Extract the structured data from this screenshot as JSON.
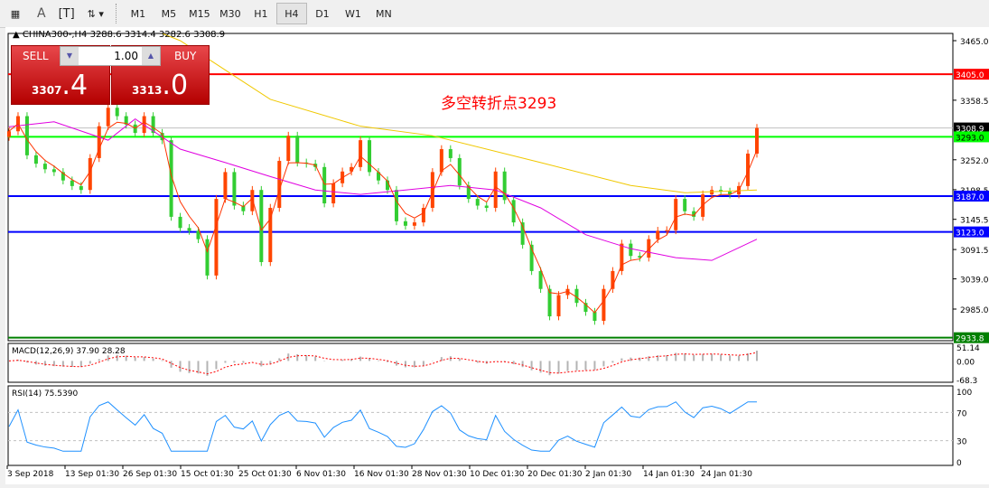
{
  "toolbar": {
    "icons": [
      "grid-icon",
      "text-icon",
      "text-label-icon",
      "arrows-icon"
    ],
    "text_icon": "A",
    "timeframes": [
      "M1",
      "M5",
      "M15",
      "M30",
      "H1",
      "H4",
      "D1",
      "W1",
      "MN"
    ],
    "selected": "H4"
  },
  "symbol_header": "CHINA300-,H4  3288.6 3314.4 3282.6 3308.9",
  "trade_panel": {
    "sell_label": "SELL",
    "buy_label": "BUY",
    "volume": "1.00",
    "sell_big": "3307",
    "sell_small": ".4",
    "buy_big": "3313",
    "buy_small": ".0"
  },
  "annotation": "多空转折点3293",
  "colors": {
    "up": "#ff4500",
    "down": "#32cd32",
    "short_ma": "#ff3300",
    "mid_ma": "#e000e0",
    "long_ma": "#f0c800",
    "resistance": "#ff0000",
    "pivot": "#00ff00",
    "support": "#0000ff",
    "low_line": "#008000",
    "macd_signal": "#ff0000",
    "macd_hist": "#b4b4b4",
    "rsi": "#1e90ff"
  },
  "chart_data": {
    "type": "candlestick",
    "symbol": "CHINA300-",
    "timeframe": "H4",
    "ylim": [
      2925,
      3480
    ],
    "yticks": [
      "3465.0",
      "3358.5",
      "3252.0",
      "3198.5",
      "3145.5",
      "3091.5",
      "3039.0",
      "2985.0"
    ],
    "xtick_labels": [
      "3 Sep 2018",
      "13 Sep 01:30",
      "26 Sep 01:30",
      "15 Oct 01:30",
      "25 Oct 01:30",
      "6 Nov 01:30",
      "16 Nov 01:30",
      "28 Nov 01:30",
      "10 Dec 01:30",
      "20 Dec 01:30",
      "2 Jan 01:30",
      "14 Jan 01:30",
      "24 Jan 01:30"
    ],
    "close": [
      3303,
      3330,
      3260,
      3245,
      3235,
      3230,
      3215,
      3205,
      3198,
      3255,
      3312,
      3345,
      3330,
      3315,
      3300,
      3330,
      3300,
      3287,
      3150,
      3130,
      3125,
      3110,
      3045,
      3182,
      3230,
      3170,
      3160,
      3198,
      3069,
      3166,
      3250,
      3295,
      3247,
      3245,
      3239,
      3174,
      3210,
      3231,
      3239,
      3287,
      3230,
      3215,
      3198,
      3142,
      3134,
      3140,
      3166,
      3230,
      3271,
      3255,
      3206,
      3182,
      3170,
      3166,
      3231,
      3180,
      3140,
      3100,
      3053,
      3021,
      2972,
      3010,
      3021,
      2996,
      2980,
      2964,
      3021,
      3053,
      3102,
      3080,
      3077,
      3110,
      3125,
      3126,
      3182,
      3160,
      3150,
      3190,
      3198,
      3195,
      3190,
      3205,
      3263,
      3308.9
    ],
    "long_ma": [
      [
        17,
        3478
      ],
      [
        19,
        3465
      ],
      [
        29,
        3360
      ],
      [
        39,
        3312
      ],
      [
        47,
        3295
      ],
      [
        59,
        3247
      ],
      [
        69,
        3206
      ],
      [
        75,
        3193
      ],
      [
        83,
        3198
      ]
    ],
    "mid_ma": [
      [
        0,
        3311
      ],
      [
        5,
        3320
      ],
      [
        11,
        3287
      ],
      [
        14,
        3325
      ],
      [
        19,
        3271
      ],
      [
        24,
        3247
      ],
      [
        29,
        3222
      ],
      [
        34,
        3198
      ],
      [
        39,
        3190
      ],
      [
        44,
        3198
      ],
      [
        49,
        3206
      ],
      [
        54,
        3198
      ],
      [
        59,
        3166
      ],
      [
        64,
        3118
      ],
      [
        69,
        3093
      ],
      [
        74,
        3077
      ],
      [
        78,
        3072
      ],
      [
        83,
        3110
      ]
    ],
    "hlines": [
      {
        "price": 3405.0,
        "label": "3405.0",
        "role": "resistance"
      },
      {
        "price": 3308.9,
        "label": "3308.9",
        "role": "current"
      },
      {
        "price": 3293.0,
        "label": "3293.0",
        "role": "pivot"
      },
      {
        "price": 3187.0,
        "label": "3187.0",
        "role": "support"
      },
      {
        "price": 3123.0,
        "label": "3123.0",
        "role": "support"
      },
      {
        "price": 2933.8,
        "label": "2933.8",
        "role": "low"
      }
    ],
    "macd": {
      "title": "MACD(12,26,9) 37.90 28.28",
      "ylim": [
        -68.3,
        51.14
      ],
      "yticks": [
        "51.14",
        "0.00",
        "-68.3"
      ]
    },
    "rsi": {
      "title": "RSI(14) 75.5390",
      "ylim": [
        0,
        100
      ],
      "yticks": [
        "100",
        "70",
        "30",
        "0"
      ],
      "levels": [
        70,
        30
      ]
    }
  }
}
